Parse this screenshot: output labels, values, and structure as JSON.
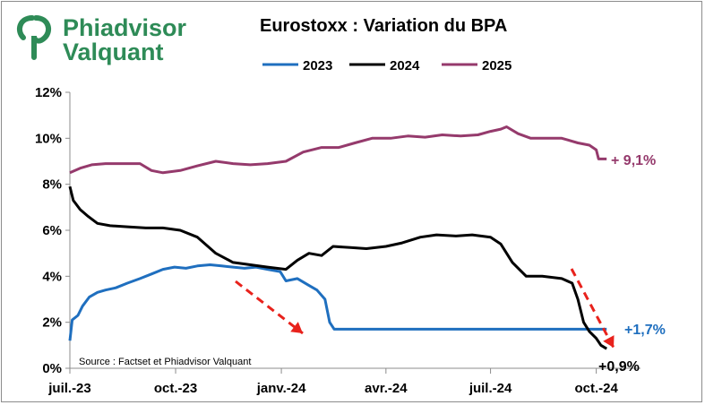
{
  "logo": {
    "line1": "Phiadvisor",
    "line2": "Valquant",
    "color": "#2e8b57"
  },
  "chart_data": {
    "type": "line",
    "title": "Eurostoxx : Variation du BPA",
    "xlabel": "",
    "ylabel": "",
    "x_ticks": [
      "juil.-23",
      "oct.-23",
      "janv.-24",
      "avr.-24",
      "juil.-24",
      "oct.-24"
    ],
    "x_range": [
      "2023-07-01",
      "2024-10-20"
    ],
    "ylim": [
      0,
      12
    ],
    "y_ticks": [
      "0%",
      "2%",
      "4%",
      "6%",
      "8%",
      "10%",
      "12%"
    ],
    "grid": false,
    "legend_position": "top",
    "source": "Source : Factset et Phiadvisor Valquant",
    "series": [
      {
        "name": "2023",
        "color": "#1f6fbf",
        "points": [
          [
            "2023-07-01",
            1.2
          ],
          [
            "2023-07-03",
            2.1
          ],
          [
            "2023-07-08",
            2.3
          ],
          [
            "2023-07-12",
            2.7
          ],
          [
            "2023-07-18",
            3.1
          ],
          [
            "2023-07-25",
            3.3
          ],
          [
            "2023-08-01",
            3.4
          ],
          [
            "2023-08-10",
            3.5
          ],
          [
            "2023-08-20",
            3.7
          ],
          [
            "2023-08-31",
            3.9
          ],
          [
            "2023-09-10",
            4.1
          ],
          [
            "2023-09-20",
            4.3
          ],
          [
            "2023-09-30",
            4.4
          ],
          [
            "2023-10-10",
            4.35
          ],
          [
            "2023-10-20",
            4.45
          ],
          [
            "2023-10-31",
            4.5
          ],
          [
            "2023-11-10",
            4.45
          ],
          [
            "2023-11-20",
            4.4
          ],
          [
            "2023-11-30",
            4.35
          ],
          [
            "2023-12-10",
            4.4
          ],
          [
            "2023-12-20",
            4.3
          ],
          [
            "2023-12-31",
            4.2
          ],
          [
            "2024-01-05",
            3.8
          ],
          [
            "2024-01-15",
            3.9
          ],
          [
            "2024-01-25",
            3.6
          ],
          [
            "2024-02-01",
            3.4
          ],
          [
            "2024-02-08",
            3.0
          ],
          [
            "2024-02-12",
            2.0
          ],
          [
            "2024-02-16",
            1.7
          ],
          [
            "2024-10-10",
            1.7
          ]
        ]
      },
      {
        "name": "2024",
        "color": "#000000",
        "points": [
          [
            "2023-07-01",
            7.9
          ],
          [
            "2023-07-04",
            7.3
          ],
          [
            "2023-07-10",
            6.9
          ],
          [
            "2023-07-17",
            6.6
          ],
          [
            "2023-07-25",
            6.3
          ],
          [
            "2023-08-05",
            6.2
          ],
          [
            "2023-08-20",
            6.15
          ],
          [
            "2023-09-05",
            6.1
          ],
          [
            "2023-09-20",
            6.1
          ],
          [
            "2023-10-05",
            6.0
          ],
          [
            "2023-10-20",
            5.7
          ],
          [
            "2023-11-05",
            5.0
          ],
          [
            "2023-11-20",
            4.6
          ],
          [
            "2023-12-05",
            4.5
          ],
          [
            "2023-12-20",
            4.4
          ],
          [
            "2024-01-05",
            4.3
          ],
          [
            "2024-01-15",
            4.7
          ],
          [
            "2024-01-25",
            5.0
          ],
          [
            "2024-02-05",
            4.9
          ],
          [
            "2024-02-15",
            5.3
          ],
          [
            "2024-03-01",
            5.25
          ],
          [
            "2024-03-15",
            5.2
          ],
          [
            "2024-04-01",
            5.3
          ],
          [
            "2024-04-15",
            5.45
          ],
          [
            "2024-05-01",
            5.7
          ],
          [
            "2024-05-15",
            5.8
          ],
          [
            "2024-06-01",
            5.75
          ],
          [
            "2024-06-15",
            5.8
          ],
          [
            "2024-07-01",
            5.7
          ],
          [
            "2024-07-10",
            5.4
          ],
          [
            "2024-07-20",
            4.6
          ],
          [
            "2024-08-01",
            4.0
          ],
          [
            "2024-08-15",
            4.0
          ],
          [
            "2024-09-01",
            3.9
          ],
          [
            "2024-09-10",
            3.7
          ],
          [
            "2024-09-15",
            3.0
          ],
          [
            "2024-09-20",
            2.0
          ],
          [
            "2024-09-25",
            1.6
          ],
          [
            "2024-10-01",
            1.3
          ],
          [
            "2024-10-05",
            1.0
          ],
          [
            "2024-10-10",
            0.85
          ]
        ]
      },
      {
        "name": "2025",
        "color": "#953a6c",
        "points": [
          [
            "2023-07-01",
            8.5
          ],
          [
            "2023-07-10",
            8.7
          ],
          [
            "2023-07-20",
            8.85
          ],
          [
            "2023-08-01",
            8.9
          ],
          [
            "2023-08-15",
            8.9
          ],
          [
            "2023-08-31",
            8.9
          ],
          [
            "2023-09-10",
            8.6
          ],
          [
            "2023-09-20",
            8.5
          ],
          [
            "2023-10-05",
            8.6
          ],
          [
            "2023-10-20",
            8.8
          ],
          [
            "2023-11-05",
            9.0
          ],
          [
            "2023-11-20",
            8.9
          ],
          [
            "2023-12-05",
            8.85
          ],
          [
            "2023-12-20",
            8.9
          ],
          [
            "2024-01-05",
            9.0
          ],
          [
            "2024-01-20",
            9.4
          ],
          [
            "2024-02-05",
            9.6
          ],
          [
            "2024-02-20",
            9.6
          ],
          [
            "2024-03-05",
            9.8
          ],
          [
            "2024-03-20",
            10.0
          ],
          [
            "2024-04-05",
            10.0
          ],
          [
            "2024-04-20",
            10.1
          ],
          [
            "2024-05-05",
            10.05
          ],
          [
            "2024-05-20",
            10.15
          ],
          [
            "2024-06-05",
            10.1
          ],
          [
            "2024-06-20",
            10.15
          ],
          [
            "2024-07-01",
            10.3
          ],
          [
            "2024-07-10",
            10.4
          ],
          [
            "2024-07-15",
            10.5
          ],
          [
            "2024-07-25",
            10.2
          ],
          [
            "2024-08-05",
            10.0
          ],
          [
            "2024-08-20",
            10.0
          ],
          [
            "2024-09-01",
            10.0
          ],
          [
            "2024-09-15",
            9.8
          ],
          [
            "2024-09-25",
            9.7
          ],
          [
            "2024-10-01",
            9.5
          ],
          [
            "2024-10-03",
            9.1
          ],
          [
            "2024-10-10",
            9.1
          ]
        ]
      }
    ],
    "annotations": [
      {
        "text": "+ 9,1%",
        "color": "#953a6c"
      },
      {
        "text": "+1,7%",
        "color": "#1f6fbf"
      },
      {
        "text": "+0,9%",
        "color": "#000000"
      }
    ],
    "arrow_color": "#e8221c"
  }
}
